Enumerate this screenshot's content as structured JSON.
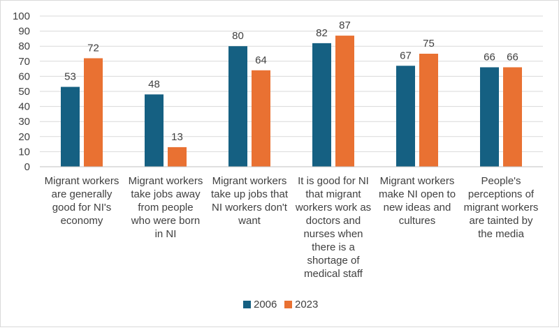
{
  "chart_data": {
    "type": "bar",
    "title": "",
    "xlabel": "",
    "ylabel": "",
    "ylim": [
      0,
      100
    ],
    "yticks": [
      0,
      10,
      20,
      30,
      40,
      50,
      60,
      70,
      80,
      90,
      100
    ],
    "grid": true,
    "legend_position": "bottom",
    "categories": [
      "Migrant workers are generally good for NI's economy",
      "Migrant workers take jobs away from people who were born in NI",
      "Migrant workers take up jobs that NI workers don't want",
      "It is good for NI that migrant workers work as doctors and nurses when there is a shortage of medical staff",
      "Migrant workers make NI open to new ideas and cultures",
      "People's perceptions of migrant workers are tainted by the media"
    ],
    "category_lines": [
      [
        "Migrant workers",
        "are generally",
        "good for NI's",
        "economy"
      ],
      [
        "Migrant workers",
        "take jobs away",
        "from people",
        "who were born",
        "in NI"
      ],
      [
        "Migrant workers",
        "take up jobs that",
        "NI workers don't",
        "want"
      ],
      [
        "It is good for NI",
        "that migrant",
        "workers work as",
        "doctors and",
        "nurses when",
        "there is a",
        "shortage of",
        "medical staff"
      ],
      [
        "Migrant workers",
        "make NI open to",
        "new ideas and",
        "cultures"
      ],
      [
        "People's",
        "perceptions of",
        "migrant workers",
        "are tainted by",
        "the media"
      ]
    ],
    "series": [
      {
        "name": "2006",
        "color": "#156082",
        "values": [
          53,
          48,
          80,
          82,
          67,
          66
        ]
      },
      {
        "name": "2023",
        "color": "#E97132",
        "values": [
          72,
          13,
          64,
          87,
          75,
          66
        ]
      }
    ],
    "colors": {
      "gridline": "#d9d9d9",
      "axis": "#bfbfbf",
      "text": "#404040"
    }
  }
}
